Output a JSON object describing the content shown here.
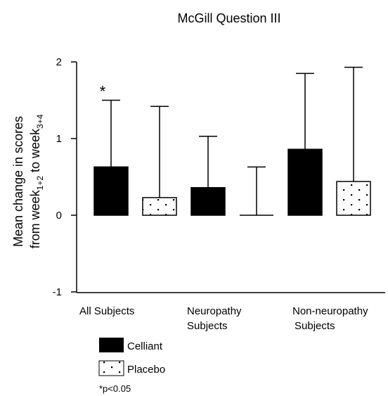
{
  "chart_data": {
    "type": "bar",
    "title": "McGill Question III",
    "ylabel": {
      "line1": "Mean change in scores",
      "line2_prefix": "from week",
      "line2_sub1": "1+2",
      "line2_mid": " to week",
      "line2_sub2": "3+4"
    },
    "ylim": [
      -1,
      2
    ],
    "yticks": [
      -1,
      0,
      1,
      2
    ],
    "ytick_labels": [
      "-1",
      "0",
      "1",
      "2"
    ],
    "categories": [
      [
        "All Subjects"
      ],
      [
        "Neuropathy",
        "Subjects"
      ],
      [
        "Non-neuropathy",
        "Subjects"
      ]
    ],
    "series": [
      {
        "name": "Celliant",
        "values": [
          0.63,
          0.36,
          0.86
        ],
        "error_top": [
          1.5,
          1.03,
          1.85
        ],
        "fill": "#000000",
        "pattern": "solid"
      },
      {
        "name": "Placebo",
        "values": [
          0.23,
          0.0,
          0.44
        ],
        "error_top": [
          1.42,
          0.63,
          1.93
        ],
        "fill": "#ffffff",
        "pattern": "dotted"
      }
    ],
    "annotations": [
      {
        "text": "*",
        "category": 0,
        "series": 0
      }
    ],
    "note": "*p<0.05",
    "grid": false,
    "legend_position": "bottom-left"
  }
}
